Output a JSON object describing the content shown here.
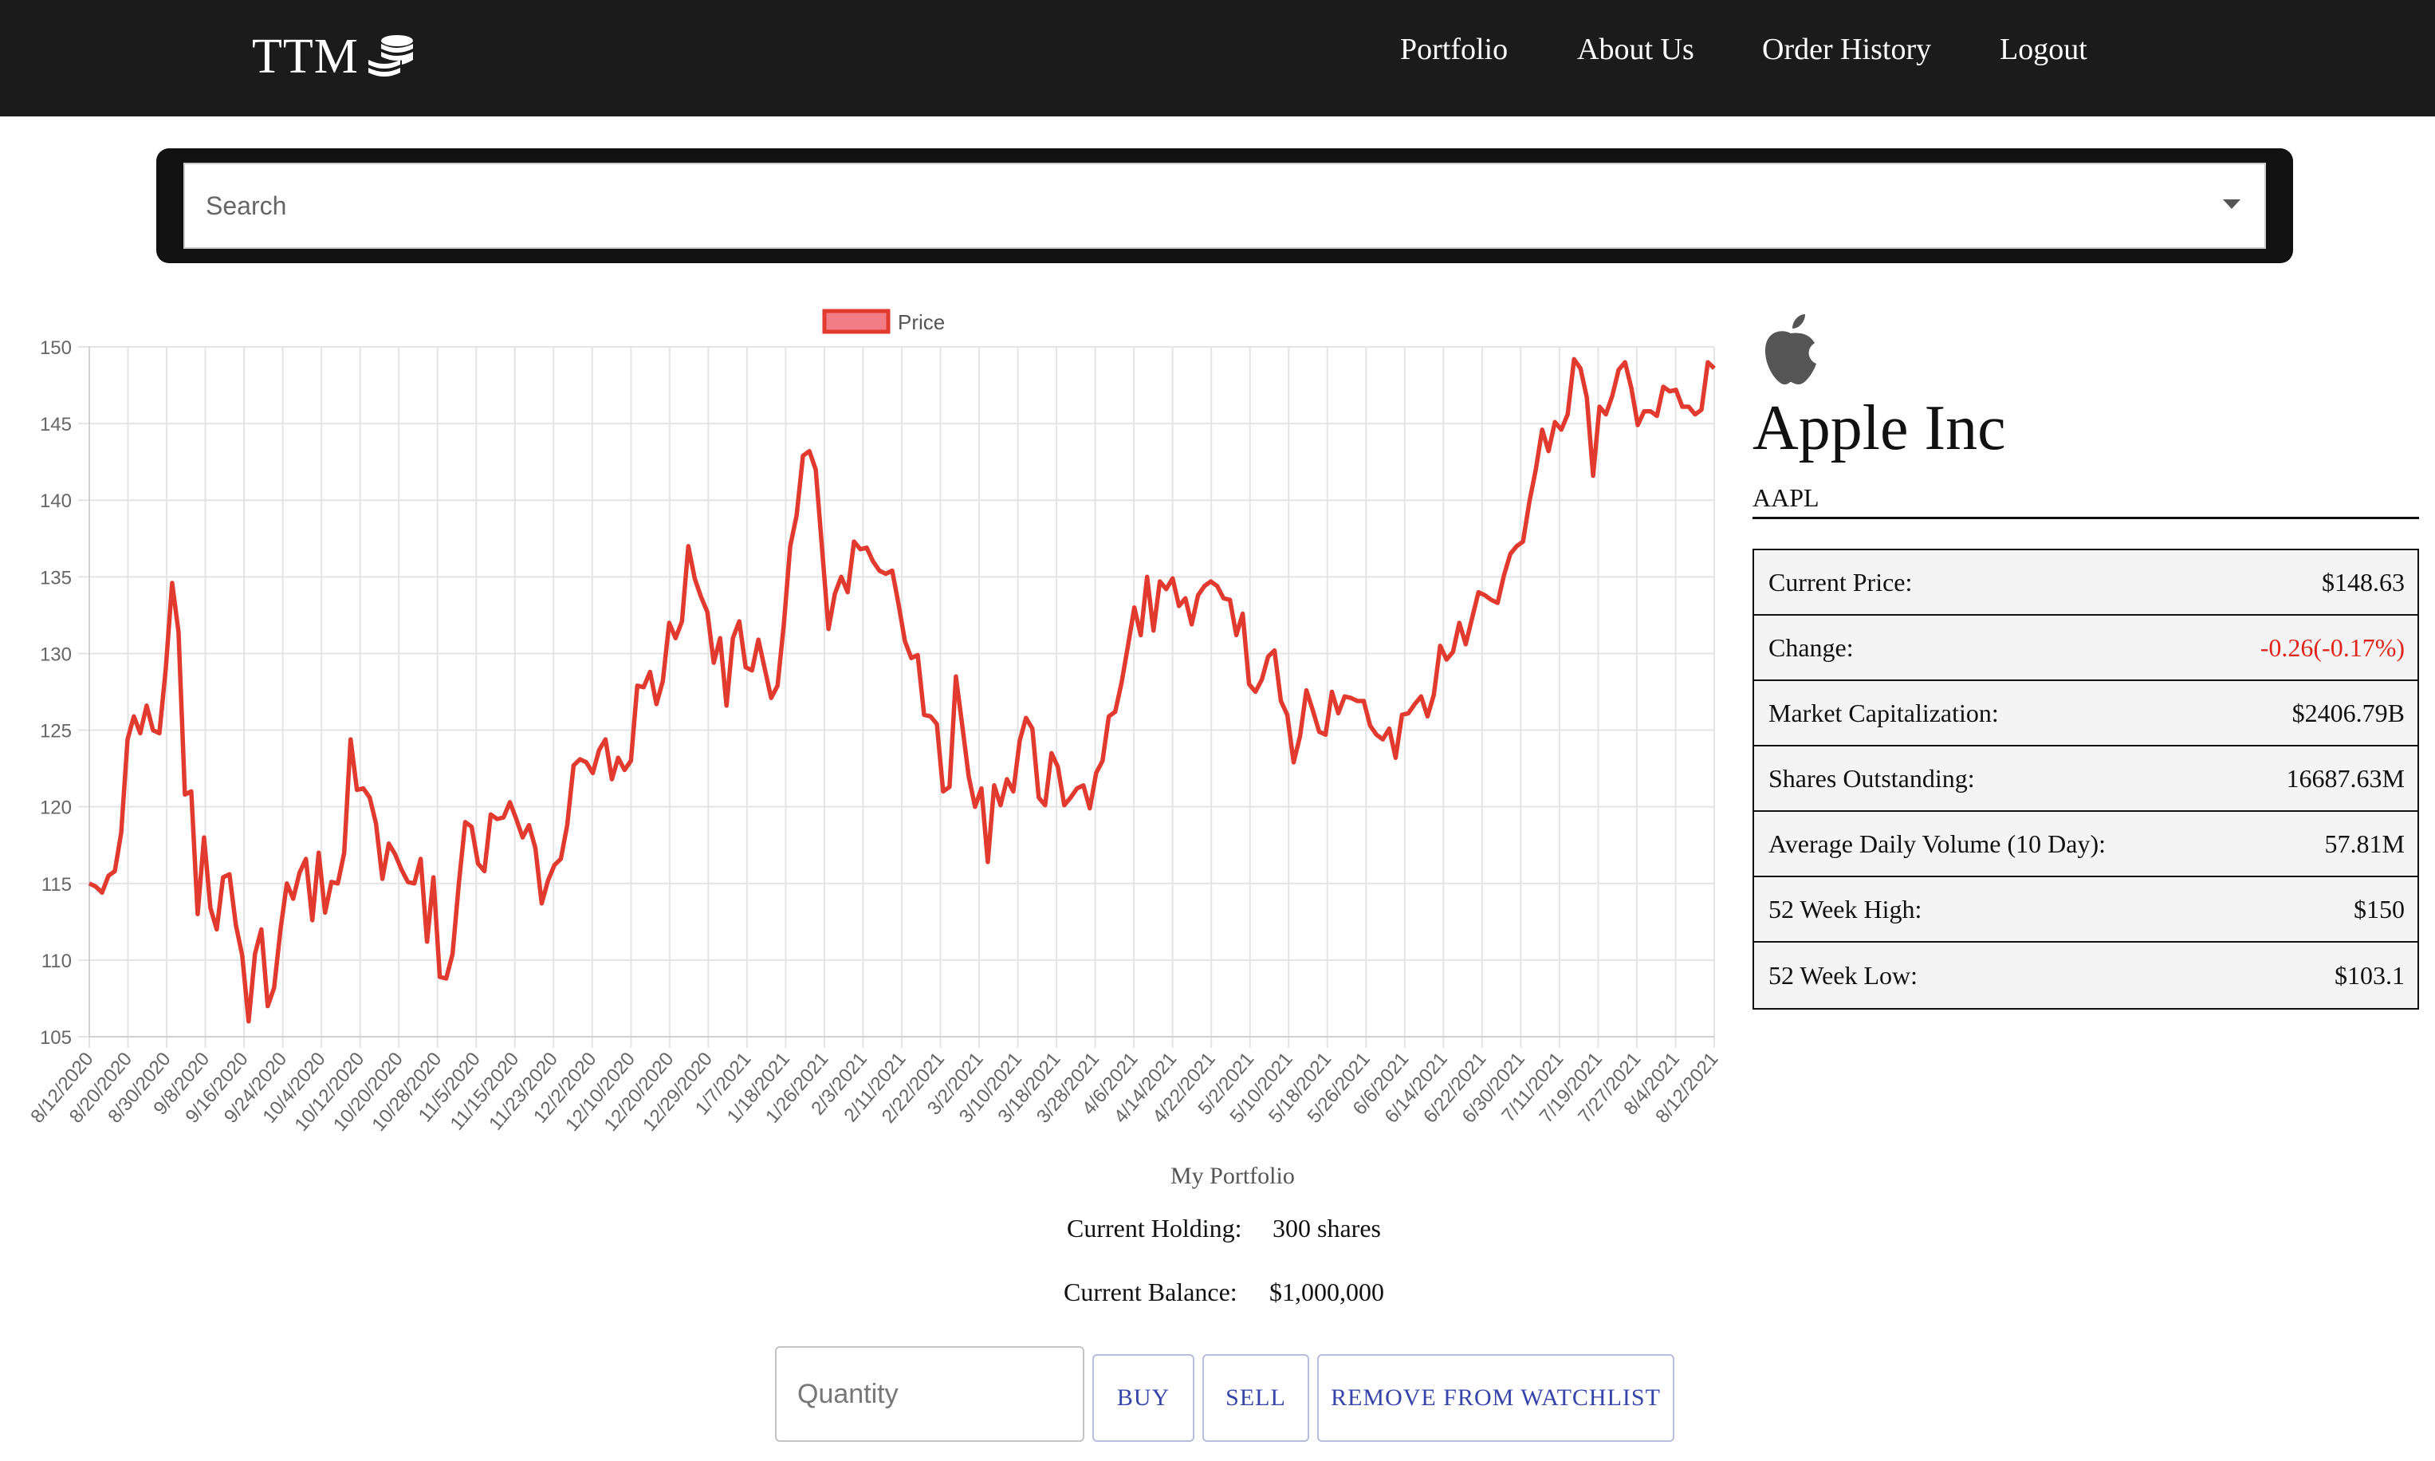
{
  "nav": {
    "brand": "TTM",
    "brand_icon": "coin-stack-icon",
    "links": [
      "Portfolio",
      "About Us",
      "Order History",
      "Logout"
    ]
  },
  "search": {
    "placeholder": "Search",
    "value": ""
  },
  "chart_data": {
    "type": "line",
    "title": "",
    "xlabel": "",
    "ylabel": "",
    "ylim": [
      105,
      150
    ],
    "yticks": [
      105,
      110,
      115,
      120,
      125,
      130,
      135,
      140,
      145,
      150
    ],
    "grid": true,
    "legend_position": "top",
    "series": [
      {
        "name": "Price",
        "color": "#e23a2e",
        "fill": "#f07c86",
        "values": [
          115.0,
          114.8,
          114.4,
          115.5,
          115.8,
          118.3,
          124.4,
          125.9,
          124.8,
          126.6,
          125.0,
          124.8,
          129.0,
          134.6,
          131.4,
          120.8,
          121.0,
          113.0,
          118.0,
          113.4,
          112.0,
          115.4,
          115.6,
          112.3,
          110.3,
          106.0,
          110.4,
          112.0,
          107.0,
          108.2,
          112.0,
          115.0,
          114.0,
          115.7,
          116.6,
          112.6,
          117.0,
          113.1,
          115.1,
          115.0,
          117.0,
          124.4,
          121.1,
          121.2,
          120.6,
          118.9,
          115.3,
          117.6,
          116.9,
          115.9,
          115.1,
          115.0,
          116.6,
          111.2,
          115.4,
          108.9,
          108.8,
          110.4,
          115.0,
          119.0,
          118.7,
          116.3,
          115.8,
          119.5,
          119.2,
          119.3,
          120.3,
          119.2,
          118.0,
          118.8,
          117.3,
          113.7,
          115.2,
          116.2,
          116.6,
          118.8,
          122.7,
          123.1,
          122.9,
          122.2,
          123.7,
          124.4,
          121.8,
          123.2,
          122.4,
          123.0,
          127.9,
          127.8,
          128.8,
          126.7,
          128.2,
          132.0,
          131.0,
          132.1,
          137.0,
          134.9,
          133.7,
          132.7,
          129.4,
          131.0,
          126.6,
          131.0,
          132.1,
          129.1,
          128.9,
          130.9,
          129.0,
          127.1,
          127.9,
          131.9,
          137.0,
          139.0,
          142.9,
          143.2,
          142.0,
          136.8,
          131.6,
          133.9,
          135.0,
          134.0,
          137.3,
          136.8,
          136.9,
          136.0,
          135.4,
          135.2,
          135.4,
          133.2,
          130.8,
          129.7,
          129.9,
          126.0,
          125.9,
          125.4,
          121.0,
          121.3,
          128.5,
          125.3,
          122.0,
          120.0,
          121.2,
          116.4,
          121.4,
          120.1,
          121.8,
          121.0,
          124.3,
          125.8,
          125.1,
          120.6,
          120.1,
          123.5,
          122.6,
          120.1,
          120.6,
          121.2,
          121.4,
          119.9,
          122.2,
          123.0,
          125.9,
          126.2,
          128.1,
          130.5,
          133.0,
          131.2,
          135.0,
          131.5,
          134.7,
          134.2,
          134.9,
          133.1,
          133.6,
          131.9,
          133.8,
          134.4,
          134.7,
          134.4,
          133.6,
          133.5,
          131.2,
          132.6,
          128.0,
          127.5,
          128.3,
          129.8,
          130.2,
          126.9,
          126.0,
          122.9,
          124.6,
          127.6,
          126.3,
          124.9,
          124.7,
          127.5,
          126.1,
          127.2,
          127.1,
          126.9,
          126.9,
          125.3,
          124.7,
          124.4,
          125.1,
          123.2,
          126.0,
          126.1,
          126.7,
          127.2,
          125.9,
          127.3,
          130.5,
          129.6,
          130.1,
          132.0,
          130.6,
          132.3,
          134.0,
          133.8,
          133.5,
          133.3,
          135.1,
          136.5,
          137.0,
          137.3,
          139.9,
          142.0,
          144.6,
          143.2,
          145.1,
          144.6,
          145.6,
          149.2,
          148.6,
          146.7,
          141.6,
          146.1,
          145.6,
          146.8,
          148.5,
          149.0,
          147.3,
          144.9,
          145.8,
          145.8,
          145.5,
          147.4,
          147.1,
          147.2,
          146.1,
          146.1,
          145.6,
          145.9,
          149.0,
          148.6
        ]
      }
    ],
    "x_labels": [
      "8/12/2020",
      "8/20/2020",
      "8/30/2020",
      "9/8/2020",
      "9/16/2020",
      "9/24/2020",
      "10/4/2020",
      "10/12/2020",
      "10/20/2020",
      "10/28/2020",
      "11/5/2020",
      "11/15/2020",
      "11/23/2020",
      "12/2/2020",
      "12/10/2020",
      "12/20/2020",
      "12/29/2020",
      "1/7/2021",
      "1/18/2021",
      "1/26/2021",
      "2/3/2021",
      "2/11/2021",
      "2/22/2021",
      "3/2/2021",
      "3/10/2021",
      "3/18/2021",
      "3/28/2021",
      "4/6/2021",
      "4/14/2021",
      "4/22/2021",
      "5/2/2021",
      "5/10/2021",
      "5/18/2021",
      "5/26/2021",
      "6/6/2021",
      "6/14/2021",
      "6/22/2021",
      "6/30/2021",
      "7/11/2021",
      "7/19/2021",
      "7/27/2021",
      "8/4/2021",
      "8/12/2021"
    ]
  },
  "stock": {
    "logo_icon": "apple-logo-icon",
    "name": "Apple Inc",
    "ticker": "AAPL",
    "stats": [
      {
        "label": "Current Price:",
        "value": "$148.63",
        "color": "#111111"
      },
      {
        "label": "Change:",
        "value": "-0.26(-0.17%)",
        "color": "#e0241b"
      },
      {
        "label": "Market Capitalization:",
        "value": "$2406.79B",
        "color": "#111111"
      },
      {
        "label": "Shares Outstanding:",
        "value": "16687.63M",
        "color": "#111111"
      },
      {
        "label": "Average Daily Volume (10 Day):",
        "value": "57.81M",
        "color": "#111111"
      },
      {
        "label": "52 Week High:",
        "value": "$150",
        "color": "#111111"
      },
      {
        "label": "52 Week Low:",
        "value": "$103.1",
        "color": "#111111"
      }
    ]
  },
  "portfolio": {
    "title": "My Portfolio",
    "holding_label": "Current Holding:",
    "holding_value": "300 shares",
    "balance_label": "Current Balance:",
    "balance_value": "$1,000,000",
    "quantity_placeholder": "Quantity",
    "buy_label": "BUY",
    "sell_label": "SELL",
    "remove_label": "REMOVE FROM WATCHLIST"
  }
}
